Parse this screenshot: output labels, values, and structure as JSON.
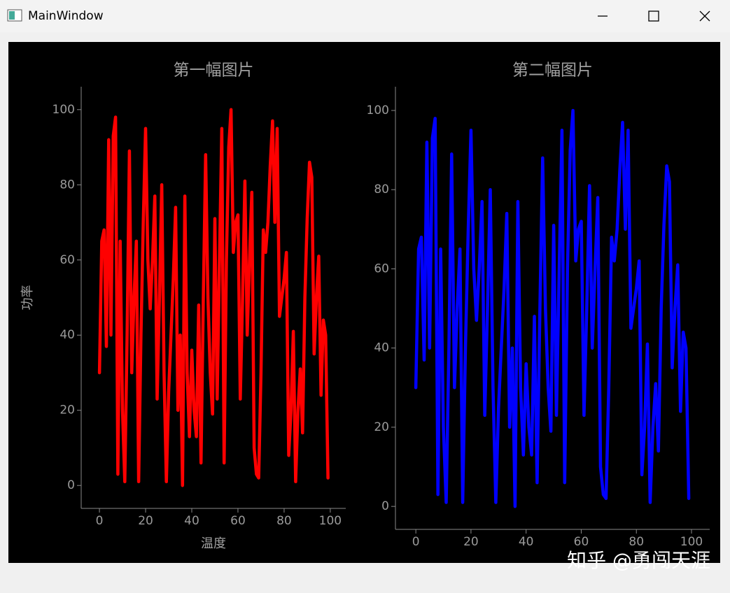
{
  "window": {
    "title": "MainWindow",
    "watermark": "知乎 @勇闯天涯"
  },
  "chart_data": [
    {
      "type": "line",
      "title": "第一幅图片",
      "xlabel": "温度",
      "ylabel": "功率",
      "color": "#ff0000",
      "x": [
        0,
        1,
        2,
        3,
        4,
        5,
        6,
        7,
        8,
        9,
        10,
        11,
        12,
        13,
        14,
        15,
        16,
        17,
        18,
        19,
        20,
        21,
        22,
        23,
        24,
        25,
        26,
        27,
        28,
        29,
        30,
        31,
        32,
        33,
        34,
        35,
        36,
        37,
        38,
        39,
        40,
        41,
        42,
        43,
        44,
        45,
        46,
        47,
        48,
        49,
        50,
        51,
        52,
        53,
        54,
        55,
        56,
        57,
        58,
        59,
        60,
        61,
        62,
        63,
        64,
        65,
        66,
        67,
        68,
        69,
        70,
        71,
        72,
        73,
        74,
        75,
        76,
        77,
        78,
        79,
        80,
        81,
        82,
        83,
        84,
        85,
        86,
        87,
        88,
        89,
        90,
        91,
        92,
        93,
        94,
        95,
        96,
        97,
        98,
        99
      ],
      "values": [
        30,
        65,
        68,
        37,
        92,
        40,
        93,
        98,
        3,
        65,
        20,
        1,
        40,
        89,
        30,
        50,
        65,
        1,
        40,
        70,
        95,
        60,
        47,
        60,
        77,
        23,
        50,
        80,
        30,
        1,
        25,
        40,
        55,
        74,
        20,
        40,
        0,
        77,
        30,
        13,
        36,
        20,
        13,
        48,
        6,
        50,
        88,
        50,
        30,
        19,
        71,
        23,
        60,
        95,
        6,
        60,
        90,
        100,
        62,
        70,
        72,
        23,
        50,
        81,
        40,
        60,
        78,
        10,
        3,
        2,
        30,
        68,
        62,
        70,
        85,
        97,
        70,
        95,
        45,
        50,
        55,
        62,
        8,
        20,
        41,
        1,
        20,
        31,
        14,
        50,
        71,
        86,
        82,
        35,
        50,
        61,
        24,
        44,
        40,
        2
      ],
      "xlim": [
        -7.9,
        106.7
      ],
      "ylim": [
        -6.1,
        106.1
      ],
      "xticks": [
        0,
        20,
        40,
        60,
        80,
        100
      ],
      "yticks": [
        0,
        20,
        40,
        60,
        80,
        100
      ]
    },
    {
      "type": "line",
      "title": "第二幅图片",
      "color": "#0000ff",
      "x": [
        0,
        1,
        2,
        3,
        4,
        5,
        6,
        7,
        8,
        9,
        10,
        11,
        12,
        13,
        14,
        15,
        16,
        17,
        18,
        19,
        20,
        21,
        22,
        23,
        24,
        25,
        26,
        27,
        28,
        29,
        30,
        31,
        32,
        33,
        34,
        35,
        36,
        37,
        38,
        39,
        40,
        41,
        42,
        43,
        44,
        45,
        46,
        47,
        48,
        49,
        50,
        51,
        52,
        53,
        54,
        55,
        56,
        57,
        58,
        59,
        60,
        61,
        62,
        63,
        64,
        65,
        66,
        67,
        68,
        69,
        70,
        71,
        72,
        73,
        74,
        75,
        76,
        77,
        78,
        79,
        80,
        81,
        82,
        83,
        84,
        85,
        86,
        87,
        88,
        89,
        90,
        91,
        92,
        93,
        94,
        95,
        96,
        97,
        98,
        99
      ],
      "values": [
        30,
        65,
        68,
        37,
        92,
        40,
        93,
        98,
        3,
        65,
        20,
        1,
        40,
        89,
        30,
        50,
        65,
        1,
        40,
        70,
        95,
        60,
        47,
        60,
        77,
        23,
        50,
        80,
        30,
        1,
        25,
        40,
        55,
        74,
        20,
        40,
        0,
        77,
        30,
        13,
        36,
        20,
        13,
        48,
        6,
        50,
        88,
        50,
        30,
        19,
        71,
        23,
        60,
        95,
        6,
        60,
        90,
        100,
        62,
        70,
        72,
        23,
        50,
        81,
        40,
        60,
        78,
        10,
        3,
        2,
        30,
        68,
        62,
        70,
        85,
        97,
        70,
        95,
        45,
        50,
        55,
        62,
        8,
        20,
        41,
        1,
        20,
        31,
        14,
        50,
        71,
        86,
        82,
        35,
        50,
        61,
        24,
        44,
        40,
        2
      ],
      "xlim": [
        -7.4,
        106.6
      ],
      "ylim": [
        -5.8,
        106
      ],
      "xticks": [
        0,
        20,
        40,
        60,
        80,
        100
      ],
      "yticks": [
        0,
        20,
        40,
        60,
        80,
        100
      ]
    }
  ]
}
